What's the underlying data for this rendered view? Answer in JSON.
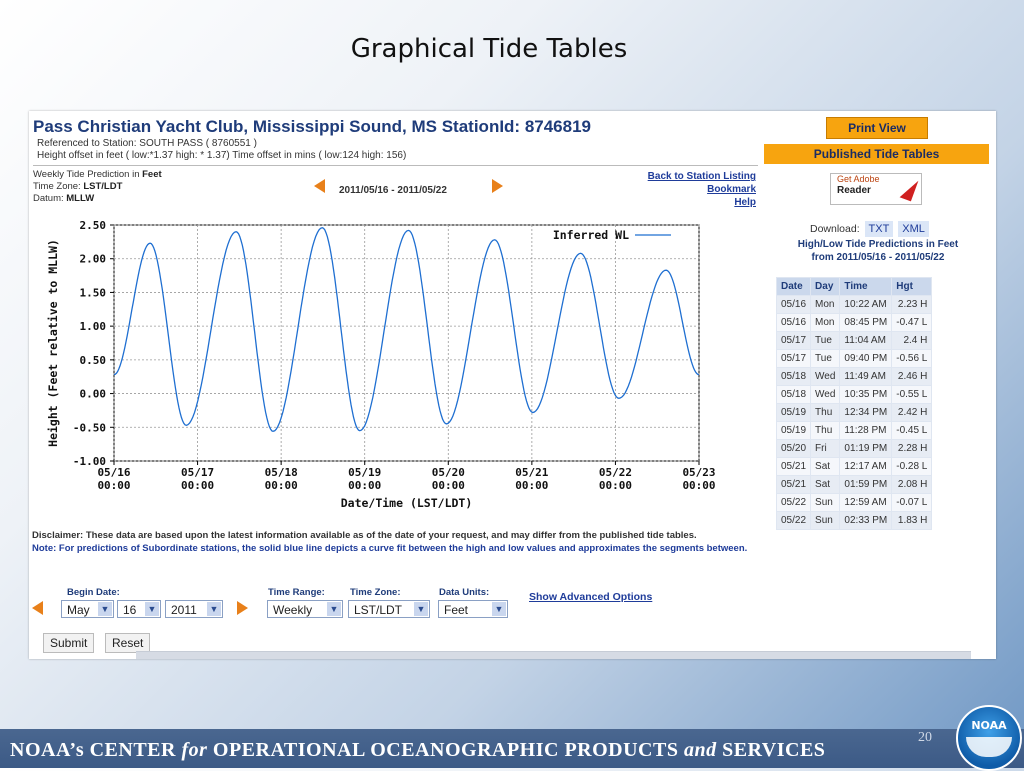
{
  "slide": {
    "title": "Graphical Tide Tables",
    "footer": {
      "p1": "NOAA’s  CENTER ",
      "for": "for",
      "p2": " OPERATIONAL  OCEANOGRAPHIC  PRODUCTS ",
      "and": "and",
      "p3": " SERVICES"
    },
    "page_number": "20",
    "logo_text": "NOAA"
  },
  "header": {
    "title": "Pass Christian Yacht Club, Mississippi Sound, MS  StationId: 8746819",
    "reference": "Referenced to Station: SOUTH PASS ( 8760551 )",
    "offsets": "Height offset in feet ( low:*1.37 high: * 1.37)    Time offset in mins ( low:124 high: 156)"
  },
  "info": {
    "prediction_prefix": "Weekly Tide Prediction in ",
    "prediction_unit": "Feet",
    "timezone_prefix": "Time Zone: ",
    "timezone": "LST/LDT",
    "datum_prefix": "Datum: ",
    "datum": "MLLW",
    "range": "2011/05/16 - 2011/05/22"
  },
  "links": {
    "back": "Back to Station Listing",
    "bookmark": "Bookmark",
    "help": "Help"
  },
  "right": {
    "print": "Print View",
    "published": "Published Tide Tables",
    "adobe_get": "Get Adobe",
    "adobe_reader": "Reader",
    "download_label": "Download:",
    "txt": "TXT",
    "xml": "XML",
    "hl_title_1": "High/Low Tide Predictions in Feet",
    "hl_title_2": "from 2011/05/16 - 2011/05/22"
  },
  "table": {
    "headers": [
      "Date",
      "Day",
      "Time",
      "Hgt"
    ],
    "rows": [
      [
        "05/16",
        "Mon",
        "10:22 AM",
        "2.23 H"
      ],
      [
        "05/16",
        "Mon",
        "08:45 PM",
        "-0.47 L"
      ],
      [
        "05/17",
        "Tue",
        "11:04 AM",
        "2.4 H"
      ],
      [
        "05/17",
        "Tue",
        "09:40 PM",
        "-0.56 L"
      ],
      [
        "05/18",
        "Wed",
        "11:49 AM",
        "2.46 H"
      ],
      [
        "05/18",
        "Wed",
        "10:35 PM",
        "-0.55 L"
      ],
      [
        "05/19",
        "Thu",
        "12:34 PM",
        "2.42 H"
      ],
      [
        "05/19",
        "Thu",
        "11:28 PM",
        "-0.45 L"
      ],
      [
        "05/20",
        "Fri",
        "01:19 PM",
        "2.28 H"
      ],
      [
        "05/21",
        "Sat",
        "12:17 AM",
        "-0.28 L"
      ],
      [
        "05/21",
        "Sat",
        "01:59 PM",
        "2.08 H"
      ],
      [
        "05/22",
        "Sun",
        "12:59 AM",
        "-0.07 L"
      ],
      [
        "05/22",
        "Sun",
        "02:33 PM",
        "1.83 H"
      ]
    ]
  },
  "chart_data": {
    "type": "line",
    "xlabel": "Date/Time (LST/LDT)",
    "ylabel": "Height (Feet relative to MLLW)",
    "legend": "Inferred WL",
    "legend_position": "top-right",
    "grid": true,
    "ylim": [
      -1.0,
      2.5
    ],
    "xlim": [
      "2011-05-16 00:00",
      "2011-05-23 00:00"
    ],
    "y_ticks": [
      "2.50",
      "2.00",
      "1.50",
      "1.00",
      "0.50",
      "0.00",
      "-0.50",
      "-1.00"
    ],
    "x_ticks": [
      {
        "date": "05/16",
        "time": "00:00"
      },
      {
        "date": "05/17",
        "time": "00:00"
      },
      {
        "date": "05/18",
        "time": "00:00"
      },
      {
        "date": "05/19",
        "time": "00:00"
      },
      {
        "date": "05/20",
        "time": "00:00"
      },
      {
        "date": "05/21",
        "time": "00:00"
      },
      {
        "date": "05/22",
        "time": "00:00"
      },
      {
        "date": "05/23",
        "time": "00:00"
      }
    ],
    "series": [
      {
        "name": "Inferred WL",
        "color": "#1f6fd1",
        "extrema": [
          {
            "t": "2011-05-16 00:00",
            "h": 0.28
          },
          {
            "t": "2011-05-16 10:22",
            "h": 2.23
          },
          {
            "t": "2011-05-16 20:45",
            "h": -0.47
          },
          {
            "t": "2011-05-17 11:04",
            "h": 2.4
          },
          {
            "t": "2011-05-17 21:40",
            "h": -0.56
          },
          {
            "t": "2011-05-18 11:49",
            "h": 2.46
          },
          {
            "t": "2011-05-18 22:35",
            "h": -0.55
          },
          {
            "t": "2011-05-19 12:34",
            "h": 2.42
          },
          {
            "t": "2011-05-19 23:28",
            "h": -0.45
          },
          {
            "t": "2011-05-20 13:19",
            "h": 2.28
          },
          {
            "t": "2011-05-21 00:17",
            "h": -0.28
          },
          {
            "t": "2011-05-21 13:59",
            "h": 2.08
          },
          {
            "t": "2011-05-22 00:59",
            "h": -0.07
          },
          {
            "t": "2011-05-22 14:33",
            "h": 1.83
          },
          {
            "t": "2011-05-23 00:00",
            "h": 0.28
          }
        ]
      }
    ]
  },
  "disclaimer": {
    "text": "Disclaimer: These data are based upon the latest information available as of the date of your request, and may differ from the published tide tables.",
    "note": "Note: For predictions of Subordinate stations, the solid blue line depicts a curve fit between the high and low values and approximates the segments between."
  },
  "form": {
    "begin_label": "Begin Date:",
    "month": "May",
    "day": "16",
    "year": "2011",
    "range_label": "Time Range:",
    "range": "Weekly",
    "tz_label": "Time Zone:",
    "tz": "LST/LDT",
    "units_label": "Data Units:",
    "units": "Feet",
    "advanced": "Show Advanced Options",
    "submit": "Submit",
    "reset": "Reset"
  }
}
